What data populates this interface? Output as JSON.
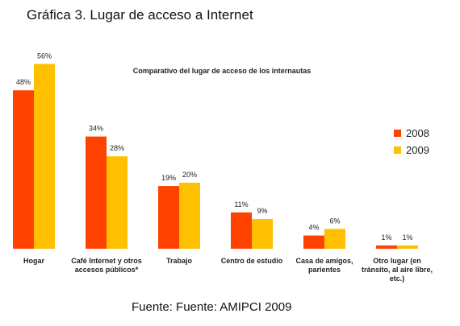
{
  "page": {
    "heading": "Gráfica 3. Lugar de acceso a Internet",
    "source": "Fuente: Fuente: AMIPCI 2009"
  },
  "chart_data": {
    "type": "bar",
    "title": "Comparativo del lugar de acceso de los internautas",
    "xlabel": "",
    "ylabel": "",
    "ylim": [
      0,
      60
    ],
    "grid": false,
    "legend_position": "right",
    "categories": [
      [
        "Hogar"
      ],
      [
        "Café Internet y otros",
        "accesos públicos*"
      ],
      [
        "Trabajo"
      ],
      [
        "Centro de estudio"
      ],
      [
        "Casa de amigos,",
        "parientes"
      ],
      [
        "Otro lugar (en",
        "tránsito, al aire libre,",
        "etc.)"
      ]
    ],
    "series": [
      {
        "name": "2008",
        "color": "#fe4200",
        "values": [
          48,
          34,
          19,
          11,
          4,
          1
        ],
        "labels": [
          "48%",
          "34%",
          "19%",
          "11%",
          "4%",
          "1%"
        ]
      },
      {
        "name": "2009",
        "color": "#fec000",
        "values": [
          56,
          28,
          20,
          9,
          6,
          1
        ],
        "labels": [
          "56%",
          "28%",
          "20%",
          "9%",
          "6%",
          "1%"
        ]
      }
    ]
  }
}
